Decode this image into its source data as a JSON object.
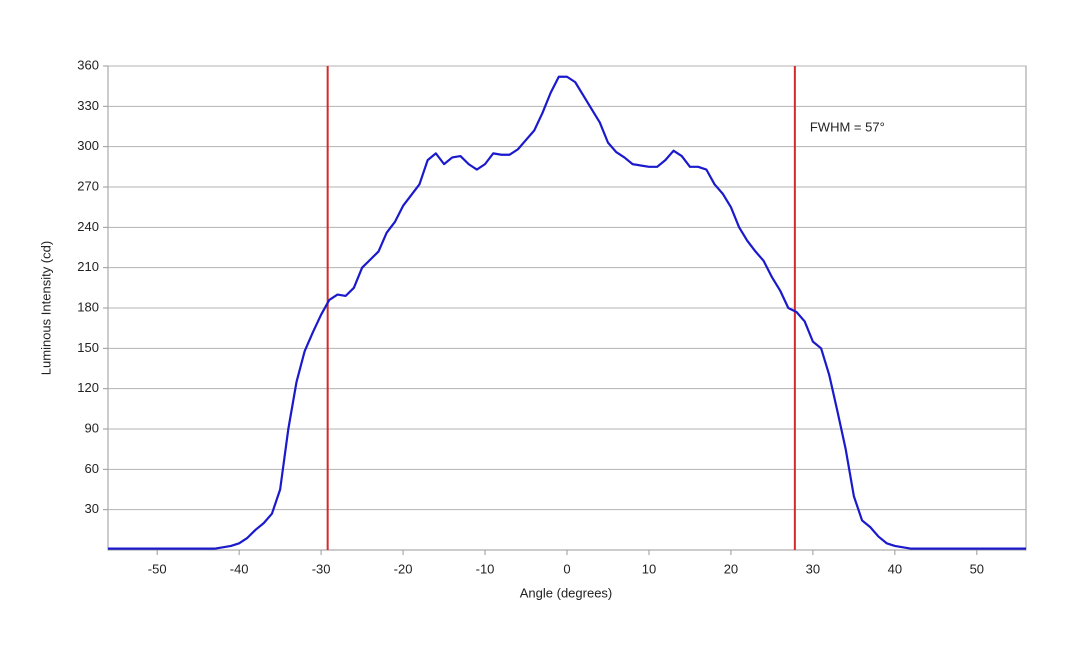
{
  "chart_data": {
    "type": "line",
    "x_label": "Angle (degrees)",
    "y_label": "Luminous Intensity (cd)",
    "annotation": "FWHM = 57°",
    "x": [
      -56,
      -55,
      -54,
      -53,
      -52,
      -51,
      -50,
      -49,
      -48,
      -47,
      -46,
      -45,
      -44,
      -43,
      -42,
      -41,
      -40,
      -39,
      -38,
      -37,
      -36,
      -35,
      -34,
      -33,
      -32,
      -31,
      -30,
      -29,
      -28,
      -27,
      -26,
      -25,
      -24,
      -23,
      -22,
      -21,
      -20,
      -19,
      -18,
      -17,
      -16,
      -15,
      -14,
      -13,
      -12,
      -11,
      -10,
      -9,
      -8,
      -7,
      -6,
      -5,
      -4,
      -3,
      -2,
      -1,
      0,
      1,
      2,
      3,
      4,
      5,
      6,
      7,
      8,
      9,
      10,
      11,
      12,
      13,
      14,
      15,
      16,
      17,
      18,
      19,
      20,
      21,
      22,
      23,
      24,
      25,
      26,
      27,
      28,
      29,
      30,
      31,
      32,
      33,
      34,
      35,
      36,
      37,
      38,
      39,
      40,
      41,
      42,
      43,
      44,
      45,
      46,
      47,
      48,
      49,
      50,
      51,
      52,
      53,
      54,
      55,
      56
    ],
    "series": [
      {
        "color": "#1a1acc",
        "values": [
          1,
          1,
          1,
          1,
          1,
          1,
          1,
          1,
          1,
          1,
          1,
          1,
          1,
          1,
          2,
          3,
          5,
          9,
          15,
          20,
          27,
          45,
          90,
          125,
          148,
          162,
          175,
          186,
          190,
          189,
          195,
          210,
          216,
          222,
          236,
          244,
          256,
          264,
          272,
          290,
          295,
          287,
          292,
          293,
          287,
          283,
          287,
          295,
          294,
          294,
          298,
          305,
          312,
          325,
          340,
          352,
          352,
          348,
          338,
          328,
          318,
          303,
          296,
          292,
          287,
          286,
          285,
          285,
          290,
          297,
          293,
          285,
          285,
          283,
          272,
          265,
          255,
          240,
          230,
          222,
          215,
          203,
          193,
          180,
          177,
          170,
          155,
          150,
          130,
          103,
          75,
          40,
          22,
          17,
          10,
          5,
          3,
          2,
          1,
          1,
          1,
          1,
          1,
          1,
          1,
          1,
          1,
          1,
          1,
          1,
          1,
          1,
          1
        ]
      }
    ],
    "vlines": [
      -29.2,
      27.8
    ],
    "vline_color": "#d42a2a",
    "xlim": [
      -56,
      56
    ],
    "ylim": [
      0,
      360
    ],
    "xticks": [
      -50,
      -40,
      -30,
      -20,
      -10,
      0,
      10,
      20,
      30,
      40,
      50
    ],
    "yticks": [
      30,
      60,
      90,
      120,
      150,
      180,
      210,
      240,
      270,
      300,
      330,
      360
    ],
    "grid": true
  }
}
